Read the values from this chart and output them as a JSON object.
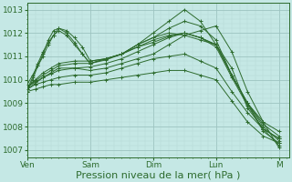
{
  "background_color": "#c5e8e5",
  "grid_color_major": "#9dc4c0",
  "grid_color_minor": "#b5d8d4",
  "line_color": "#2d6b2d",
  "xlabel": "Pression niveau de la mer( hPa )",
  "xlabel_fontsize": 8,
  "xtick_labels": [
    "Ven",
    "Sam",
    "Dim",
    "Lun",
    "M"
  ],
  "xtick_positions": [
    0,
    24,
    48,
    72,
    96
  ],
  "ytick_labels": [
    "1007",
    "1008",
    "1009",
    "1010",
    "1011",
    "1012",
    "1013"
  ],
  "ytick_positions": [
    1007,
    1008,
    1009,
    1010,
    1011,
    1012,
    1013
  ],
  "ylim": [
    1006.7,
    1013.3
  ],
  "xlim": [
    0,
    100
  ],
  "series": [
    {
      "x": [
        0,
        3,
        6,
        9,
        12,
        18,
        24,
        30,
        36,
        42,
        48,
        54,
        60,
        66,
        72,
        78,
        84,
        90,
        96
      ],
      "y": [
        1009.7,
        1009.9,
        1010.1,
        1010.3,
        1010.5,
        1010.5,
        1010.4,
        1010.5,
        1010.7,
        1010.9,
        1011.1,
        1011.5,
        1011.9,
        1012.1,
        1012.3,
        1011.2,
        1009.5,
        1008.2,
        1007.1
      ]
    },
    {
      "x": [
        0,
        3,
        6,
        9,
        12,
        18,
        24,
        30,
        36,
        42,
        48,
        54,
        60,
        66,
        72,
        78,
        84,
        90,
        96
      ],
      "y": [
        1009.6,
        1009.85,
        1010.1,
        1010.25,
        1010.4,
        1010.5,
        1010.55,
        1010.7,
        1010.9,
        1011.2,
        1011.5,
        1011.8,
        1012.0,
        1011.8,
        1011.5,
        1010.2,
        1009.0,
        1007.8,
        1007.3
      ]
    },
    {
      "x": [
        0,
        2,
        4,
        6,
        8,
        10,
        12,
        15,
        18,
        21,
        24,
        30,
        36,
        42,
        48,
        54,
        60,
        66,
        72,
        78,
        84,
        90,
        96
      ],
      "y": [
        1009.8,
        1010.2,
        1010.6,
        1011.0,
        1011.5,
        1011.9,
        1012.2,
        1012.1,
        1011.8,
        1011.4,
        1010.8,
        1010.9,
        1011.1,
        1011.5,
        1012.0,
        1012.5,
        1013.0,
        1012.5,
        1011.5,
        1010.5,
        1008.8,
        1007.9,
        1007.2
      ]
    },
    {
      "x": [
        0,
        2,
        4,
        6,
        8,
        10,
        12,
        15,
        18,
        21,
        24,
        30,
        36,
        42,
        48,
        54,
        60,
        66,
        72,
        78,
        84,
        90,
        96
      ],
      "y": [
        1009.5,
        1010.0,
        1010.6,
        1011.1,
        1011.7,
        1012.1,
        1012.2,
        1012.0,
        1011.6,
        1011.1,
        1010.7,
        1010.9,
        1011.1,
        1011.5,
        1011.8,
        1012.2,
        1012.5,
        1012.3,
        1011.7,
        1010.2,
        1009.0,
        1008.2,
        1007.8
      ]
    },
    {
      "x": [
        0,
        2,
        4,
        6,
        8,
        10,
        12,
        15,
        18,
        21,
        24,
        30,
        36,
        42,
        48,
        54,
        60,
        66,
        72,
        78,
        84,
        90,
        96
      ],
      "y": [
        1009.6,
        1010.1,
        1010.7,
        1011.2,
        1011.6,
        1011.9,
        1012.1,
        1011.9,
        1011.5,
        1011.1,
        1010.7,
        1010.9,
        1011.1,
        1011.5,
        1011.8,
        1012.0,
        1011.9,
        1011.7,
        1011.5,
        1010.2,
        1009.0,
        1008.1,
        1007.6
      ]
    },
    {
      "x": [
        0,
        3,
        6,
        9,
        12,
        18,
        24,
        30,
        36,
        42,
        48,
        54,
        60,
        66,
        72,
        78,
        84,
        90,
        96
      ],
      "y": [
        1009.7,
        1010.0,
        1010.3,
        1010.5,
        1010.7,
        1010.8,
        1010.8,
        1010.9,
        1011.1,
        1011.4,
        1011.7,
        1011.9,
        1012.0,
        1011.8,
        1011.5,
        1010.2,
        1009.0,
        1008.0,
        1007.4
      ]
    },
    {
      "x": [
        0,
        3,
        6,
        9,
        12,
        18,
        24,
        30,
        36,
        42,
        48,
        54,
        60,
        66,
        72,
        78,
        84,
        90,
        96
      ],
      "y": [
        1009.7,
        1009.95,
        1010.2,
        1010.4,
        1010.6,
        1010.7,
        1010.7,
        1010.85,
        1011.1,
        1011.4,
        1011.6,
        1011.85,
        1012.0,
        1011.8,
        1011.4,
        1010.1,
        1008.9,
        1007.9,
        1007.5
      ]
    },
    {
      "x": [
        0,
        3,
        6,
        9,
        12,
        18,
        24,
        30,
        36,
        42,
        48,
        54,
        60,
        66,
        72,
        78,
        84,
        90,
        96
      ],
      "y": [
        1009.6,
        1009.8,
        1009.9,
        1010.0,
        1010.1,
        1010.2,
        1010.2,
        1010.3,
        1010.5,
        1010.7,
        1010.9,
        1011.0,
        1011.1,
        1010.8,
        1010.5,
        1009.5,
        1008.6,
        1007.9,
        1007.5
      ]
    },
    {
      "x": [
        0,
        3,
        6,
        9,
        12,
        18,
        24,
        30,
        36,
        42,
        48,
        54,
        60,
        66,
        72,
        78,
        84,
        90,
        96
      ],
      "y": [
        1009.5,
        1009.6,
        1009.7,
        1009.8,
        1009.8,
        1009.9,
        1009.9,
        1010.0,
        1010.1,
        1010.2,
        1010.3,
        1010.4,
        1010.4,
        1010.2,
        1010.0,
        1009.1,
        1008.2,
        1007.6,
        1007.3
      ]
    }
  ]
}
